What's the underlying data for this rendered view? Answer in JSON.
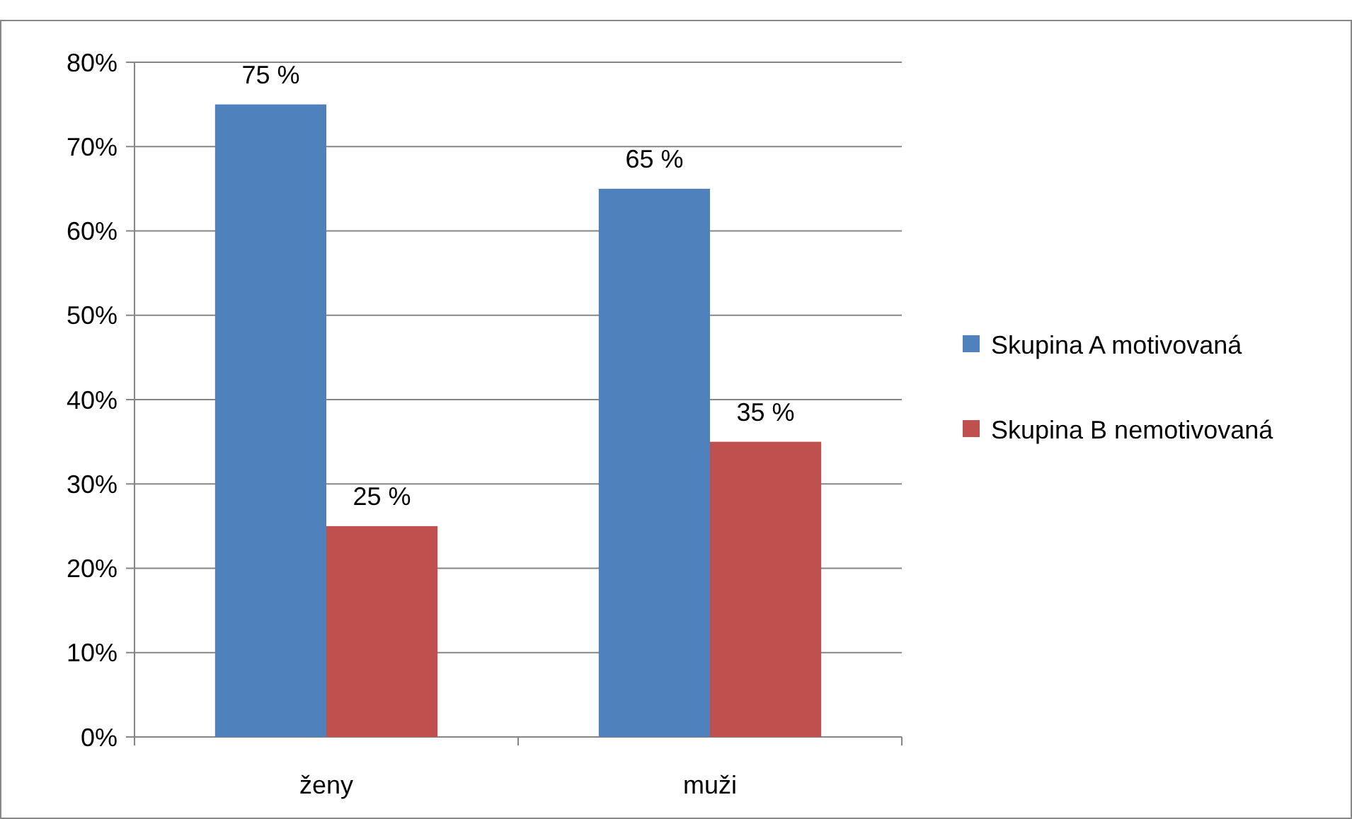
{
  "chart_data": {
    "type": "bar",
    "categories": [
      "ženy",
      "muži"
    ],
    "series": [
      {
        "name": "Skupina A motivovaná",
        "color": "#4f81bd",
        "values": [
          75,
          65
        ],
        "value_labels": [
          "75 %",
          "65 %"
        ]
      },
      {
        "name": "Skupina B nemotivovaná",
        "color": "#c0504d",
        "values": [
          25,
          35
        ],
        "value_labels": [
          "25 %",
          "35 %"
        ]
      }
    ],
    "ylim": [
      0,
      80
    ],
    "yticks": [
      {
        "value": 0,
        "label": "0%"
      },
      {
        "value": 10,
        "label": "10%"
      },
      {
        "value": 20,
        "label": "20%"
      },
      {
        "value": 30,
        "label": "30%"
      },
      {
        "value": 40,
        "label": "40%"
      },
      {
        "value": 50,
        "label": "50%"
      },
      {
        "value": 60,
        "label": "60%"
      },
      {
        "value": 70,
        "label": "70%"
      },
      {
        "value": 80,
        "label": "80%"
      }
    ],
    "grid": "y",
    "legend": "right"
  }
}
